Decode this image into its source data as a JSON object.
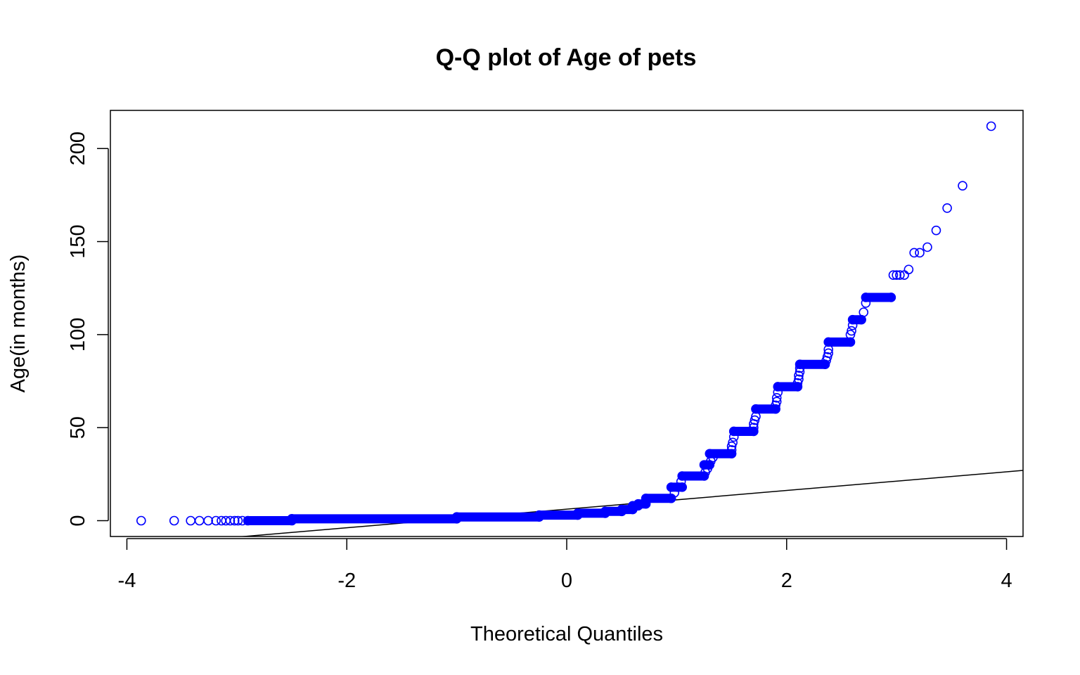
{
  "chart_data": {
    "type": "scatter",
    "title": "Q-Q plot of Age of pets",
    "xlabel": "Theoretical Quantiles",
    "ylabel": "Age(in months)",
    "xlim": [
      -4.15,
      4.15
    ],
    "ylim": [
      -8.5,
      220.5
    ],
    "x_ticks": [
      -4,
      -2,
      0,
      2,
      4
    ],
    "x_tick_labels": [
      "-4",
      "-2",
      "0",
      "2",
      "4"
    ],
    "y_ticks": [
      0,
      50,
      100,
      150,
      200
    ],
    "y_tick_labels": [
      "0",
      "50",
      "100",
      "150",
      "200"
    ],
    "grid": false,
    "point_color": "#0000ff",
    "line_color": "#000000",
    "reference_line": {
      "x": [
        -4.15,
        4.15
      ],
      "y": [
        -14.6,
        27.0
      ]
    },
    "steps": [
      {
        "x_start": -2.9,
        "x_end": -2.5,
        "y": 0
      },
      {
        "x_start": -2.5,
        "x_end": -1.0,
        "y": 1
      },
      {
        "x_start": -1.0,
        "x_end": -0.25,
        "y": 2
      },
      {
        "x_start": -0.25,
        "x_end": 0.1,
        "y": 3
      },
      {
        "x_start": 0.1,
        "x_end": 0.35,
        "y": 4
      },
      {
        "x_start": 0.35,
        "x_end": 0.5,
        "y": 5
      },
      {
        "x_start": 0.5,
        "x_end": 0.6,
        "y": 6
      },
      {
        "x_start": 0.6,
        "x_end": 0.65,
        "y": 8
      },
      {
        "x_start": 0.65,
        "x_end": 0.72,
        "y": 9
      },
      {
        "x_start": 0.72,
        "x_end": 0.95,
        "y": 12
      },
      {
        "x_start": 0.95,
        "x_end": 1.05,
        "y": 18
      },
      {
        "x_start": 1.05,
        "x_end": 1.25,
        "y": 24
      },
      {
        "x_start": 1.25,
        "x_end": 1.3,
        "y": 30
      },
      {
        "x_start": 1.3,
        "x_end": 1.5,
        "y": 36
      },
      {
        "x_start": 1.52,
        "x_end": 1.7,
        "y": 48
      },
      {
        "x_start": 1.72,
        "x_end": 1.9,
        "y": 60
      },
      {
        "x_start": 1.92,
        "x_end": 2.1,
        "y": 72
      },
      {
        "x_start": 2.12,
        "x_end": 2.35,
        "y": 84
      },
      {
        "x_start": 2.38,
        "x_end": 2.58,
        "y": 96
      },
      {
        "x_start": 2.6,
        "x_end": 2.68,
        "y": 108
      },
      {
        "x_start": 2.72,
        "x_end": 2.95,
        "y": 120
      }
    ],
    "transitions": [
      [
        0.95,
        12
      ],
      [
        0.98,
        15
      ],
      [
        1.01,
        18
      ],
      [
        1.04,
        21
      ],
      [
        1.26,
        26
      ],
      [
        1.28,
        28
      ],
      [
        1.31,
        32
      ],
      [
        1.33,
        34
      ],
      [
        1.5,
        38
      ],
      [
        1.5,
        40
      ],
      [
        1.51,
        42
      ],
      [
        1.52,
        45
      ],
      [
        1.7,
        50
      ],
      [
        1.7,
        52
      ],
      [
        1.71,
        54
      ],
      [
        1.72,
        56
      ],
      [
        1.9,
        62
      ],
      [
        1.91,
        64
      ],
      [
        1.91,
        66
      ],
      [
        1.92,
        69
      ],
      [
        2.1,
        74
      ],
      [
        2.11,
        76
      ],
      [
        2.11,
        78
      ],
      [
        2.12,
        80
      ],
      [
        2.12,
        82
      ],
      [
        2.36,
        86
      ],
      [
        2.37,
        88
      ],
      [
        2.38,
        90
      ],
      [
        2.38,
        92
      ],
      [
        2.58,
        100
      ],
      [
        2.59,
        102
      ],
      [
        2.6,
        105
      ],
      [
        2.7,
        112
      ],
      [
        2.72,
        117
      ]
    ],
    "left_tail": [
      [
        -3.87,
        0
      ],
      [
        -3.57,
        0
      ],
      [
        -3.42,
        0
      ],
      [
        -3.34,
        0
      ],
      [
        -3.26,
        0
      ],
      [
        -3.19,
        0
      ],
      [
        -3.14,
        0
      ],
      [
        -3.1,
        0
      ],
      [
        -3.06,
        0
      ],
      [
        -3.02,
        0
      ],
      [
        -2.99,
        0
      ],
      [
        -2.95,
        0
      ]
    ],
    "right_tail": [
      [
        2.97,
        132
      ],
      [
        3.0,
        132
      ],
      [
        3.03,
        132
      ],
      [
        3.07,
        132
      ],
      [
        3.11,
        135
      ],
      [
        3.16,
        144
      ],
      [
        3.21,
        144
      ],
      [
        3.28,
        147
      ],
      [
        3.36,
        156
      ],
      [
        3.46,
        168
      ],
      [
        3.6,
        180
      ],
      [
        3.86,
        212
      ]
    ]
  }
}
